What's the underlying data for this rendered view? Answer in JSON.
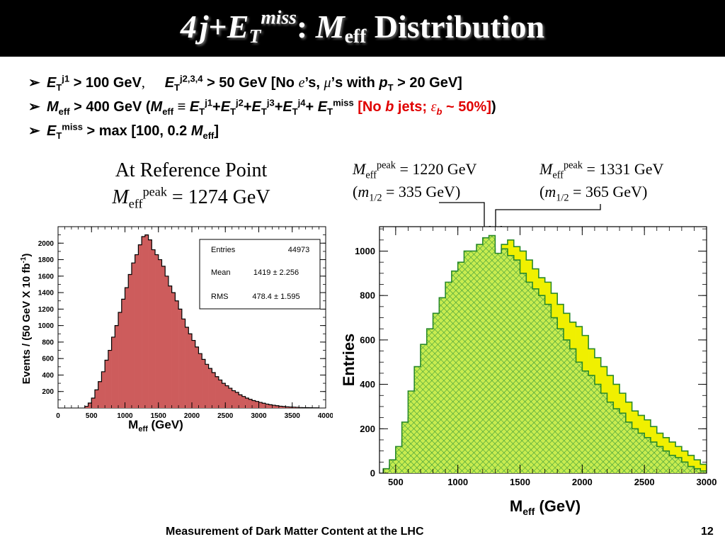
{
  "title": {
    "p1": "4",
    "p2": "j",
    "p3": "+",
    "p4": "E",
    "p5": "T",
    "p6": "miss",
    "p7": ": ",
    "p8": "M",
    "p9": "eff",
    "p10": " Distribution"
  },
  "bullets": {
    "arrow": "➢",
    "b1": {
      "e1": "E",
      "e1_sub": "T",
      "e1_sup": "j1",
      "t1": " > 100 GeV",
      "t2": ",",
      "e2": "E",
      "e2_sub": "T",
      "e2_sup": "j2,3,4",
      "t3": " > 50 GeV [No ",
      "e_sym": "e",
      "t4": "’s, ",
      "mu_sym": "μ",
      "t5": "’s with ",
      "p": "p",
      "p_sub": "T",
      "t6": " > 20 GeV]"
    },
    "b2": {
      "m": "M",
      "m_sub": "eff",
      "t1": " > 400 GeV (",
      "m2": "M",
      "m2_sub": "eff",
      "equiv": " ≡ ",
      "e1": "E",
      "e1_sub": "T",
      "e1_sup": "j1",
      "plus1": "+",
      "e2": "E",
      "e2_sub": "T",
      "e2_sup": "j2",
      "plus2": "+",
      "e3": "E",
      "e3_sub": "T",
      "e3_sup": "j3",
      "plus3": "+",
      "e4": "E",
      "e4_sub": "T",
      "e4_sup": "j4",
      "plus4": "+ ",
      "e5": "E",
      "e5_sub": "T",
      "e5_sup": "miss",
      "red1": " [No ",
      "red_b": "b",
      "red2": " jets; ",
      "red_eps": "ε",
      "red_eps_sub": "b",
      "red3": " ~ 50%]",
      "close": ")"
    },
    "b3": {
      "e": "E",
      "e_sub": "T",
      "e_sup": "miss",
      "t1": " > max [100, 0.2 ",
      "m": "M",
      "m_sub": "eff",
      "t2": "]"
    }
  },
  "left_caption": {
    "line1": "At Reference Point",
    "m": "M",
    "m_sub": "eff",
    "m_sup": "peak",
    "value": " = 1274 GeV"
  },
  "right_caption_a": {
    "m": "M",
    "m_sub": "eff",
    "m_sup": "peak",
    "value": " = 1220 GeV",
    "open": "(",
    "m12": "m",
    "m12_sub": "1/2",
    "value2": " = 335 GeV)"
  },
  "right_caption_b": {
    "m": "M",
    "m_sub": "eff",
    "m_sup": "peak",
    "value": " = 1331 GeV",
    "open": "(",
    "m12": "m",
    "m12_sub": "1/2",
    "value2": " = 365 GeV)"
  },
  "stats_box": {
    "entries_label": "Entries",
    "entries_value": "44973",
    "mean_label": "Mean",
    "mean_value": "1419 ±  2.256",
    "rms_label": "RMS",
    "rms_value": "478.4 ±  1.595"
  },
  "footer": {
    "text": "Measurement of Dark Matter Content at the LHC",
    "page": "12"
  },
  "chart_data": [
    {
      "type": "bar",
      "xlabel": "M",
      "xlabel_sub": "eff",
      "xlabel_unit": " (GeV)",
      "ylabel": "Events / (50 GeV X 10 fb",
      "ylabel_sup": "-1",
      "ylabel_close": ")",
      "xlim": [
        0,
        4000
      ],
      "ylim": [
        0,
        2200
      ],
      "xticks": [
        0,
        500,
        1000,
        1500,
        2000,
        2500,
        3000,
        3500,
        4000
      ],
      "xtick_labels": [
        "0",
        "500",
        "1000",
        "1500",
        "2000",
        "2500",
        "3000",
        "3500",
        "4000"
      ],
      "yticks": [
        200,
        400,
        600,
        800,
        1000,
        1200,
        1400,
        1600,
        1800,
        2000
      ],
      "ytick_labels": [
        "200",
        "400",
        "600",
        "800",
        "1000",
        "1200",
        "1400",
        "1600",
        "1800",
        "2000"
      ],
      "bin_start": 400,
      "bin_width": 50,
      "fill_color": "#cd5c5c",
      "values": [
        20,
        60,
        120,
        220,
        320,
        440,
        580,
        700,
        860,
        1000,
        1160,
        1320,
        1460,
        1620,
        1760,
        1860,
        1980,
        2080,
        2100,
        2040,
        1920,
        1860,
        1800,
        1720,
        1600,
        1480,
        1400,
        1300,
        1200,
        1080,
        980,
        900,
        820,
        740,
        660,
        590,
        530,
        480,
        430,
        380,
        340,
        300,
        270,
        240,
        210,
        190,
        160,
        140,
        120,
        105,
        90,
        80,
        68,
        58,
        48,
        40,
        34,
        28,
        22,
        18,
        14,
        12,
        10,
        8,
        6,
        5,
        4,
        3,
        2,
        2
      ]
    },
    {
      "type": "bar",
      "xlabel": "M",
      "xlabel_sub": "eff",
      "xlabel_unit": " (GeV)",
      "ylabel": "Entries",
      "xlim": [
        370,
        3000
      ],
      "ylim": [
        0,
        1110
      ],
      "xticks": [
        500,
        1000,
        1500,
        2000,
        2500,
        3000
      ],
      "xtick_labels": [
        "500",
        "1000",
        "1500",
        "2000",
        "2500",
        "3000"
      ],
      "yticks": [
        0,
        200,
        400,
        600,
        800,
        1000
      ],
      "ytick_labels": [
        "0",
        "200",
        "400",
        "600",
        "800",
        "1000"
      ],
      "bin_start": 400,
      "bin_width": 50,
      "series": [
        {
          "color": "#f0f000",
          "edge": "#2a8a2a",
          "style": "solid",
          "values": [
            10,
            35,
            80,
            150,
            250,
            380,
            480,
            560,
            650,
            700,
            780,
            840,
            880,
            930,
            960,
            1000,
            1000,
            1010,
            980,
            1030,
            1050,
            1020,
            1000,
            960,
            920,
            880,
            860,
            810,
            760,
            720,
            680,
            660,
            620,
            560,
            520,
            480,
            440,
            400,
            360,
            320,
            280,
            260,
            240,
            210,
            180,
            160,
            140,
            120,
            100,
            80,
            60,
            40
          ]
        },
        {
          "color": "#c8ec50",
          "edge": "#2a8a2a",
          "style": "hatched",
          "values": [
            20,
            60,
            120,
            230,
            370,
            480,
            580,
            650,
            720,
            790,
            860,
            910,
            950,
            1000,
            1000,
            1030,
            1060,
            1070,
            990,
            1010,
            980,
            960,
            900,
            860,
            830,
            800,
            760,
            700,
            650,
            600,
            560,
            500,
            460,
            440,
            400,
            360,
            320,
            290,
            270,
            230,
            200,
            180,
            160,
            140,
            120,
            100,
            80,
            70,
            50,
            30,
            20,
            10
          ]
        }
      ]
    }
  ]
}
